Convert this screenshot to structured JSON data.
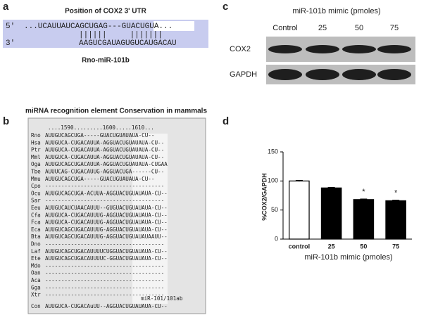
{
  "panels": {
    "a": "a",
    "b": "b",
    "c": "c",
    "d": "d"
  },
  "panel_a": {
    "title": "Position of COX2 3' UTR",
    "top_end": "5'",
    "top_seq": "...UCAUUAUCAGCUGAG---GUACUGUA...",
    "pairing": "||||||     |||||||",
    "bottom_end": "3'",
    "bottom_seq": "AAGUCGAUAGUGUCAUGACAU",
    "mirna": "Rno-miR-101b"
  },
  "panel_b": {
    "title": "miRNA recognition element Conservation in mammals",
    "ruler": "....1590.........1600.....1610...",
    "site_label": "miR-101/101ab",
    "rows": [
      {
        "species": "Rno",
        "sequence": "AUUGUCAGCUGA-----GUACUGUAUAUA-CU--",
        "color": "#3b3bd0"
      },
      {
        "species": "Hsa",
        "sequence": "AUUGUCA-CUGACAUUA-AGGUACUGUAUAUA-CU--",
        "color": "#333333"
      },
      {
        "species": "Ptr",
        "sequence": "AUUGUCA-CUGACAUUA-AGGUACUGUAUAUA-CU--",
        "color": "#3b3bd0"
      },
      {
        "species": "Mml",
        "sequence": "AUUGUCA-CUGACAUUA-AGGUACUGUAUAUA-CU--",
        "color": "#3b3bd0"
      },
      {
        "species": "Oga",
        "sequence": "AUUGUCAGCUGACAUUA-AGGUACUGUAUAUA-CUGAA",
        "color": "#3b3bd0"
      },
      {
        "species": "Tbe",
        "sequence": "AUUUCAG-CUGACAUUG-AGGUACUGA------CU--",
        "color": "#b0308f"
      },
      {
        "species": "Mmu",
        "sequence": "AUUGUCAGCUGA-----GUACUGUAUAUA-CU--",
        "color": "#333333"
      },
      {
        "species": "Cpo",
        "sequence": "-------------------------------------",
        "color": "#b0308f"
      },
      {
        "species": "Ocu",
        "sequence": "AUUGUCAGCUGA-ACUUA-AGGUACUGUAUAUA-CU--",
        "color": "#3b3bd0"
      },
      {
        "species": "Sar",
        "sequence": "-------------------------------------",
        "color": "#b0308f"
      },
      {
        "species": "Eeu",
        "sequence": "AUUGUCAUCUAACAUUU--GUGUACUGUAUAUA-CU--",
        "color": "#333333"
      },
      {
        "species": "Cfa",
        "sequence": "AUUGUCA-CUGACAUUUG-AGGUACUGUAUAUA-CU--",
        "color": "#3b3bd0"
      },
      {
        "species": "Fca",
        "sequence": "AUUGUCA-CUGACAUUUG-AGGUACUGUAUAUA-CU--",
        "color": "#888888"
      },
      {
        "species": "Eca",
        "sequence": "AUUGUCAGCUGACAUUUG-AGGUACUGUAUAUA-CU--",
        "color": "#3b3bd0"
      },
      {
        "species": "Bta",
        "sequence": "AUUGUCAGCUGACAUUUG-AGGUACUGUAUAUAAUU--",
        "color": "#3b3bd0"
      },
      {
        "species": "Dno",
        "sequence": "-------------------------------------",
        "color": "#b0308f"
      },
      {
        "species": "Laf",
        "sequence": "AUUGUCAGCUGACAUUUUCUGGUACUGUAUAUA-CU--",
        "color": "#333333"
      },
      {
        "species": "Ete",
        "sequence": "AUUGUCAGCUGACAUUUUC-GGUACUGUAUAUA-CU--",
        "color": "#3b3bd0"
      },
      {
        "species": "Mdo",
        "sequence": "-------------------------------------",
        "color": "#3b3bd0"
      },
      {
        "species": "Oan",
        "sequence": "-------------------------------------",
        "color": "#b0308f"
      },
      {
        "species": "Aca",
        "sequence": "-------------------------------------",
        "color": "#333333"
      },
      {
        "species": "Gga",
        "sequence": "-------------------------------------",
        "color": "#3b3bd0"
      },
      {
        "species": "Xtr",
        "sequence": "-------------------------------------",
        "color": "#3b3bd0"
      },
      {
        "species": "Con",
        "sequence": "AUUGUCA-CUGACAuUU--AGGUACUGUAUAUA-CU--",
        "color": "#2e9a2e"
      }
    ]
  },
  "panel_c": {
    "treatment": "miR-101b mimic (pmoles)",
    "lanes": [
      "Control",
      "25",
      "50",
      "75"
    ],
    "proteins": [
      "COX2",
      "GAPDH"
    ]
  },
  "chart_data": {
    "type": "bar",
    "categories": [
      "control",
      "25",
      "50",
      "75"
    ],
    "values": [
      100,
      88,
      68,
      66
    ],
    "errors": [
      1,
      1,
      1,
      1
    ],
    "colors": [
      "#ffffff",
      "#000000",
      "#000000",
      "#000000"
    ],
    "significance": [
      null,
      null,
      "*",
      "*"
    ],
    "ylabel": "%COX2/GAPDH",
    "xlabel": "miR-101b mimic (pmoles)",
    "ylim": [
      0,
      150
    ],
    "yticks": [
      0,
      50,
      100,
      150
    ]
  }
}
